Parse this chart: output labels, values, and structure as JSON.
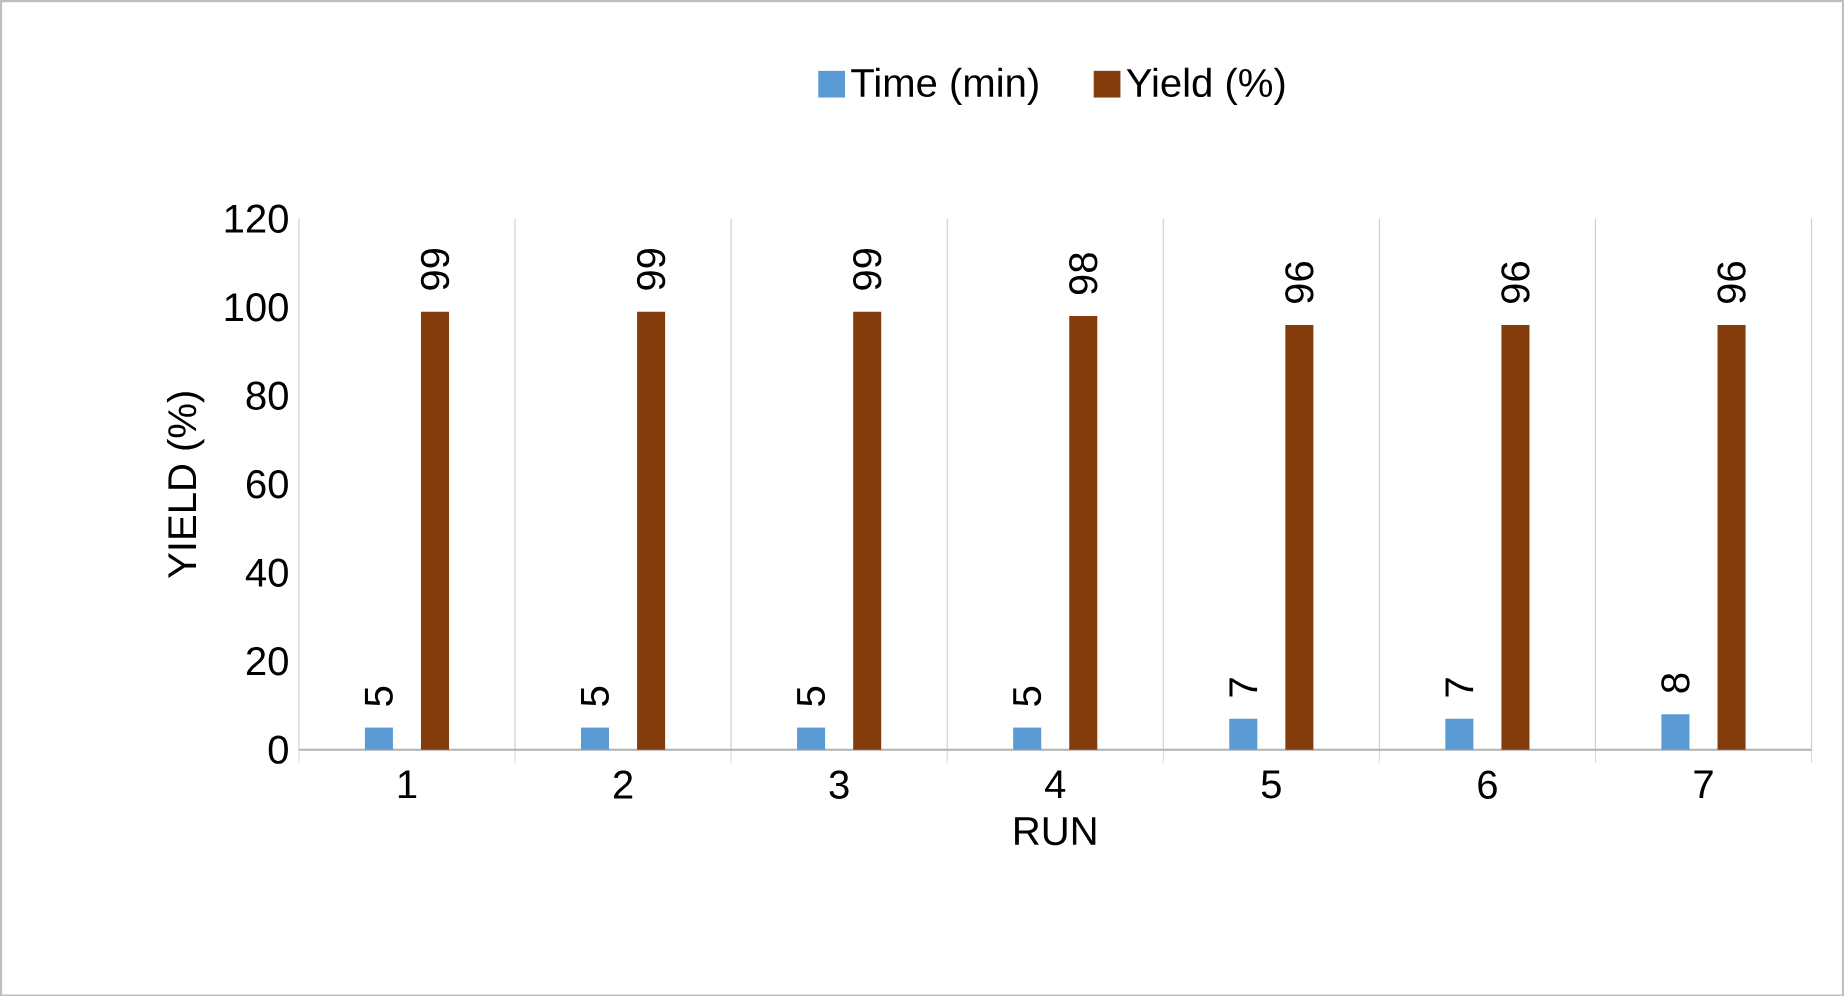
{
  "chart_data": {
    "type": "bar",
    "xlabel": "RUN",
    "ylabel": "YIELD (%)",
    "categories": [
      "1",
      "2",
      "3",
      "4",
      "5",
      "6",
      "7"
    ],
    "series": [
      {
        "name": "Time (min)",
        "color": "#5b9bd5",
        "values": [
          5,
          5,
          5,
          5,
          7,
          7,
          8
        ]
      },
      {
        "name": "Yield (%)",
        "color": "#843c0c",
        "values": [
          99,
          99,
          99,
          98,
          96,
          96,
          96
        ]
      }
    ],
    "ylim": [
      0,
      120
    ],
    "yticks": [
      0,
      20,
      40,
      60,
      80,
      100,
      120
    ],
    "grid": "x",
    "legend": "top",
    "data_labels": true
  }
}
